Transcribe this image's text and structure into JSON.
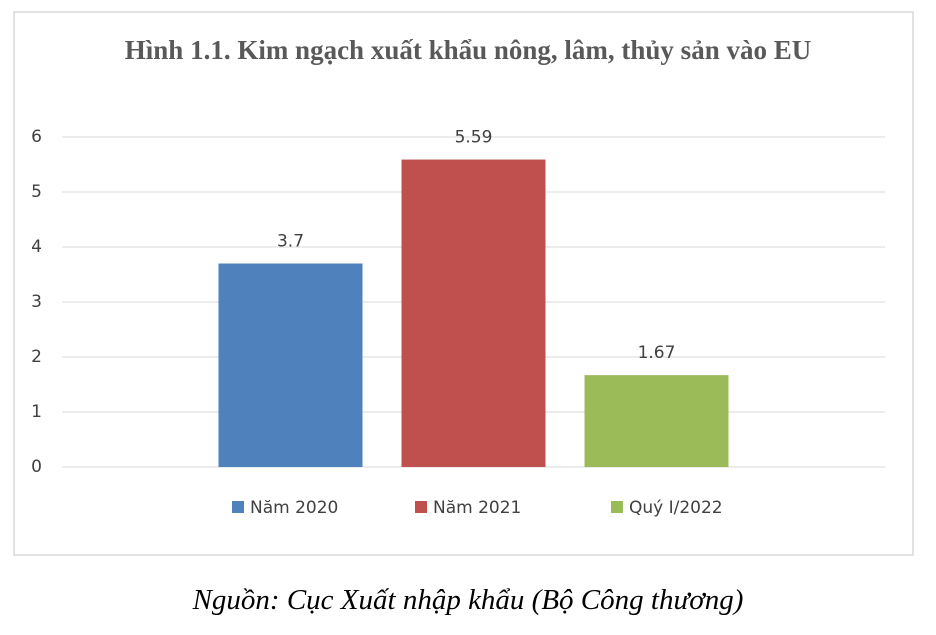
{
  "chart_data": {
    "type": "bar",
    "title": "Hình 1.1. Kim ngạch xuất khẩu nông, lâm, thủy sản vào EU",
    "categories": [
      null
    ],
    "series": [
      {
        "name": "Năm 2020",
        "color": "#4f81bd",
        "values": [
          3.7
        ]
      },
      {
        "name": "Năm 2021",
        "color": "#c0504d",
        "values": [
          5.59
        ]
      },
      {
        "name": "Quý I/2022",
        "color": "#9bbb59",
        "values": [
          1.67
        ]
      }
    ],
    "ylim": [
      0,
      6
    ],
    "yticks": [
      0,
      1,
      2,
      3,
      4,
      5,
      6
    ],
    "grid": true,
    "legend": "bottom"
  },
  "caption": "Nguồn: Cục Xuất nhập khẩu (Bộ Công thương)"
}
